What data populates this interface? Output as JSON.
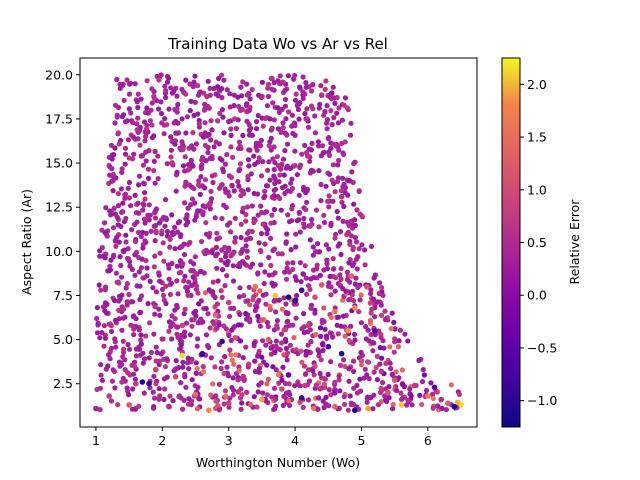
{
  "chart_data": {
    "type": "scatter",
    "title": "Training Data Wo vs Ar vs Rel",
    "xlabel": "Worthington Number (Wo)",
    "ylabel": "Aspect Ratio (Ar)",
    "xlim": [
      0.76,
      6.74
    ],
    "ylim": [
      0.05,
      20.95
    ],
    "xticks": [
      1,
      2,
      3,
      4,
      5,
      6
    ],
    "yticks": [
      2.5,
      5.0,
      7.5,
      10.0,
      12.5,
      15.0,
      17.5,
      20.0
    ],
    "colorbar": {
      "label": "Relative Error",
      "colormap": "plasma",
      "range": [
        -1.25,
        2.25
      ],
      "ticks": [
        -1.0,
        -0.5,
        0.0,
        0.5,
        1.0,
        1.5,
        2.0
      ]
    },
    "grid": false,
    "point_color_default": "#a8249e",
    "points": [
      [
        1.0,
        1.1,
        0.2
      ],
      [
        1.2,
        1.8,
        0.5
      ],
      [
        1.5,
        1.3,
        0.9
      ],
      [
        1.7,
        2.6,
        -1.1
      ],
      [
        1.8,
        2.5,
        -1.0
      ],
      [
        2.1,
        1.2,
        0.3
      ],
      [
        2.3,
        4.1,
        2.1
      ],
      [
        2.5,
        1.9,
        1.2
      ],
      [
        2.7,
        1.0,
        1.5
      ],
      [
        3.0,
        1.4,
        0.6
      ],
      [
        3.2,
        2.8,
        0.4
      ],
      [
        3.5,
        1.6,
        1.8
      ],
      [
        3.8,
        2.2,
        0.7
      ],
      [
        4.1,
        1.7,
        -0.9
      ],
      [
        4.3,
        3.5,
        0.8
      ],
      [
        4.6,
        1.2,
        1.1
      ],
      [
        4.9,
        1.0,
        -1.2
      ],
      [
        5.1,
        1.1,
        1.7
      ],
      [
        5.4,
        2.0,
        0.9
      ],
      [
        5.6,
        1.3,
        2.0
      ],
      [
        5.8,
        2.4,
        0.5
      ],
      [
        6.0,
        1.8,
        1.4
      ],
      [
        6.1,
        2.3,
        -0.7
      ],
      [
        6.2,
        1.6,
        0.3
      ],
      [
        6.3,
        1.4,
        1.0
      ],
      [
        6.4,
        1.2,
        -1.1
      ],
      [
        6.5,
        1.3,
        2.1
      ],
      [
        6.45,
        1.45,
        1.9
      ],
      [
        3.9,
        7.4,
        -1.1
      ],
      [
        4.0,
        7.2,
        -1.0
      ],
      [
        4.1,
        7.8,
        -0.8
      ],
      [
        4.4,
        8.1,
        0.9
      ],
      [
        4.6,
        6.6,
        1.2
      ],
      [
        4.8,
        5.5,
        1.6
      ],
      [
        3.4,
        8.0,
        1.3
      ],
      [
        3.7,
        7.5,
        2.0
      ],
      [
        3.1,
        5.1,
        0.8
      ],
      [
        2.9,
        4.9,
        -1.0
      ],
      [
        2.6,
        4.2,
        -0.9
      ],
      [
        2.3,
        5.8,
        0.7
      ],
      [
        3.3,
        3.6,
        0.5
      ],
      [
        3.6,
        5.0,
        1.0
      ],
      [
        4.2,
        5.8,
        0.6
      ],
      [
        4.5,
        4.6,
        -0.8
      ],
      [
        4.7,
        4.2,
        -1.1
      ],
      [
        5.0,
        3.8,
        0.8
      ],
      [
        5.2,
        5.5,
        -0.6
      ],
      [
        5.3,
        3.2,
        0.4
      ],
      [
        5.5,
        2.7,
        0.9
      ],
      [
        4.9,
        6.8,
        1.5
      ],
      [
        4.85,
        8.6,
        1.1
      ],
      [
        4.3,
        7.4,
        0.8
      ],
      [
        2.2,
        2.9,
        0.7
      ],
      [
        1.9,
        3.3,
        0.6
      ],
      [
        1.6,
        2.5,
        0.5
      ],
      [
        2.8,
        6.4,
        1.1
      ],
      [
        3.0,
        7.1,
        0.6
      ],
      [
        3.5,
        6.1,
        0.9
      ],
      [
        3.9,
        3.0,
        -0.5
      ],
      [
        4.15,
        2.4,
        0.6
      ]
    ]
  }
}
